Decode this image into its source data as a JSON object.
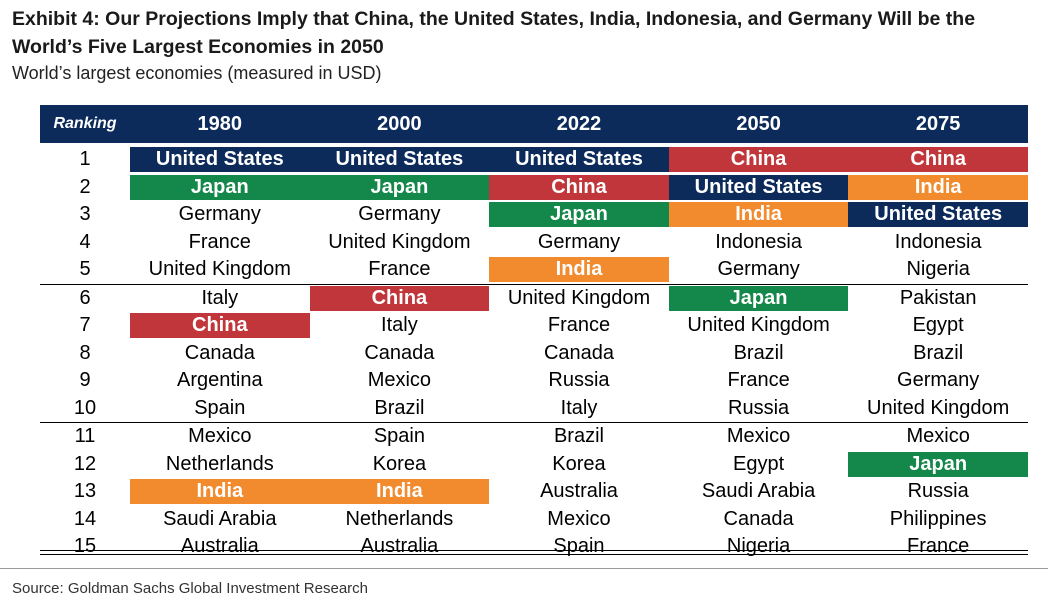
{
  "title": "Exhibit 4: Our Projections Imply that China, the United States, India, Indonesia, and Germany Will be the World’s Five Largest Economies in 2050",
  "subtitle": "World’s largest economies (measured in USD)",
  "source": "Source: Goldman Sachs Global Investment Research",
  "colors": {
    "header_bg": "#0c2b5b",
    "United States": "#0c2b5b",
    "Japan": "#14874a",
    "China": "#c0363a",
    "India": "#f28a2e"
  },
  "chart_data": {
    "type": "table",
    "columns": [
      "Ranking",
      "1980",
      "2000",
      "2022",
      "2050",
      "2075"
    ],
    "highlighted": [
      "United States",
      "Japan",
      "China",
      "India"
    ],
    "rows": [
      {
        "rank": "1",
        "values": [
          "United States",
          "United States",
          "United States",
          "China",
          "China"
        ]
      },
      {
        "rank": "2",
        "values": [
          "Japan",
          "Japan",
          "China",
          "United States",
          "India"
        ]
      },
      {
        "rank": "3",
        "values": [
          "Germany",
          "Germany",
          "Japan",
          "India",
          "United States"
        ]
      },
      {
        "rank": "4",
        "values": [
          "France",
          "United Kingdom",
          "Germany",
          "Indonesia",
          "Indonesia"
        ]
      },
      {
        "rank": "5",
        "values": [
          "United Kingdom",
          "France",
          "India",
          "Germany",
          "Nigeria"
        ]
      },
      {
        "rank": "6",
        "values": [
          "Italy",
          "China",
          "United Kingdom",
          "Japan",
          "Pakistan"
        ]
      },
      {
        "rank": "7",
        "values": [
          "China",
          "Italy",
          "France",
          "United Kingdom",
          "Egypt"
        ]
      },
      {
        "rank": "8",
        "values": [
          "Canada",
          "Canada",
          "Canada",
          "Brazil",
          "Brazil"
        ]
      },
      {
        "rank": "9",
        "values": [
          "Argentina",
          "Mexico",
          "Russia",
          "France",
          "Germany"
        ]
      },
      {
        "rank": "10",
        "values": [
          "Spain",
          "Brazil",
          "Italy",
          "Russia",
          "United Kingdom"
        ]
      },
      {
        "rank": "11",
        "values": [
          "Mexico",
          "Spain",
          "Brazil",
          "Mexico",
          "Mexico"
        ]
      },
      {
        "rank": "12",
        "values": [
          "Netherlands",
          "Korea",
          "Korea",
          "Egypt",
          "Japan"
        ]
      },
      {
        "rank": "13",
        "values": [
          "India",
          "India",
          "Australia",
          "Saudi Arabia",
          "Russia"
        ]
      },
      {
        "rank": "14",
        "values": [
          "Saudi Arabia",
          "Netherlands",
          "Mexico",
          "Canada",
          "Philippines"
        ]
      },
      {
        "rank": "15",
        "values": [
          "Australia",
          "Australia",
          "Spain",
          "Nigeria",
          "France"
        ]
      }
    ]
  }
}
